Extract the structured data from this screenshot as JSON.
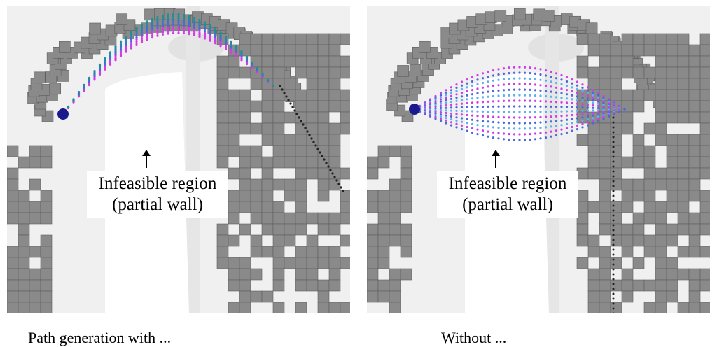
{
  "panels": [
    {
      "infeasible_label": "Infeasible region (partial wall)",
      "caption": "Path generation with ..."
    },
    {
      "infeasible_label": "Infeasible region (partial wall)",
      "caption": "Without ..."
    }
  ],
  "colors": {
    "voxel": "#8a8a8a",
    "voxel_edge": "#5e5e5e",
    "background": "#f0f0f0",
    "free_region": "#ffffff",
    "start_sphere": "#1a1a8c",
    "path_magenta": "#d13ce8",
    "path_blue": "#4a6ad8",
    "path_teal": "#1f8f9a",
    "path_lightblue": "#5ab0f0",
    "reference_path": "#222222"
  }
}
